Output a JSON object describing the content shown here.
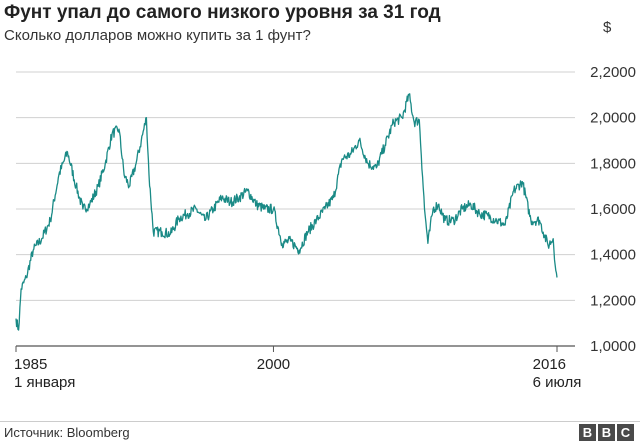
{
  "header": {
    "title": "Фунт упал до самого низкого уровня за 31 год",
    "subtitle": "Сколько долларов можно купить за 1 фунт?",
    "unit": "$"
  },
  "chart_data": {
    "type": "line",
    "title": "Фунт упал до самого низкого уровня за 31 год",
    "subtitle": "Сколько долларов можно купить за 1 фунт?",
    "ylabel": "$",
    "ylim": [
      1.0,
      2.2
    ],
    "yticks": [
      "2,2000",
      "2,0000",
      "1,8000",
      "1,6000",
      "1,4000",
      "1,2000",
      "1,0000"
    ],
    "xlim": [
      1985.0,
      2016.52
    ],
    "xticks": [
      {
        "label": "1985",
        "sub": "1 января"
      },
      {
        "label": "2000",
        "sub": ""
      },
      {
        "label": "2016",
        "sub": "6 июля"
      }
    ],
    "grid": "horizontal",
    "color": "#1a8a86",
    "series": [
      {
        "name": "",
        "x": [
          1985.0,
          1985.15,
          1985.3,
          1985.6,
          1986.0,
          1986.5,
          1987.0,
          1987.5,
          1988.0,
          1988.5,
          1988.9,
          1989.3,
          1989.8,
          1990.2,
          1990.6,
          1991.0,
          1991.3,
          1991.6,
          1992.0,
          1992.3,
          1992.6,
          1992.75,
          1993.0,
          1993.5,
          1994.0,
          1994.5,
          1995.0,
          1995.5,
          1996.0,
          1996.5,
          1997.0,
          1997.5,
          1998.0,
          1998.5,
          1999.0,
          1999.5,
          2000.0,
          2000.5,
          2001.0,
          2001.5,
          2002.0,
          2002.5,
          2003.0,
          2003.5,
          2004.0,
          2004.5,
          2005.0,
          2005.5,
          2006.0,
          2006.5,
          2007.0,
          2007.5,
          2007.9,
          2008.2,
          2008.5,
          2008.8,
          2009.0,
          2009.3,
          2009.6,
          2010.0,
          2010.5,
          2011.0,
          2011.5,
          2012.0,
          2012.5,
          2013.0,
          2013.5,
          2014.0,
          2014.5,
          2015.0,
          2015.5,
          2016.0,
          2016.3,
          2016.45,
          2016.52
        ],
        "values": [
          1.12,
          1.07,
          1.25,
          1.3,
          1.42,
          1.47,
          1.55,
          1.75,
          1.85,
          1.7,
          1.6,
          1.62,
          1.7,
          1.8,
          1.93,
          1.95,
          1.75,
          1.7,
          1.8,
          1.9,
          2.0,
          1.75,
          1.5,
          1.5,
          1.49,
          1.56,
          1.58,
          1.6,
          1.55,
          1.6,
          1.65,
          1.63,
          1.65,
          1.68,
          1.62,
          1.6,
          1.6,
          1.45,
          1.46,
          1.42,
          1.5,
          1.55,
          1.6,
          1.65,
          1.82,
          1.84,
          1.9,
          1.8,
          1.78,
          1.88,
          1.98,
          2.0,
          2.1,
          1.98,
          1.99,
          1.6,
          1.45,
          1.6,
          1.62,
          1.55,
          1.55,
          1.6,
          1.62,
          1.58,
          1.57,
          1.55,
          1.53,
          1.68,
          1.72,
          1.55,
          1.55,
          1.44,
          1.47,
          1.33,
          1.3
        ]
      }
    ]
  },
  "footer": {
    "source": "Источник: Bloomberg",
    "logo_letters": [
      "B",
      "B",
      "C"
    ]
  }
}
